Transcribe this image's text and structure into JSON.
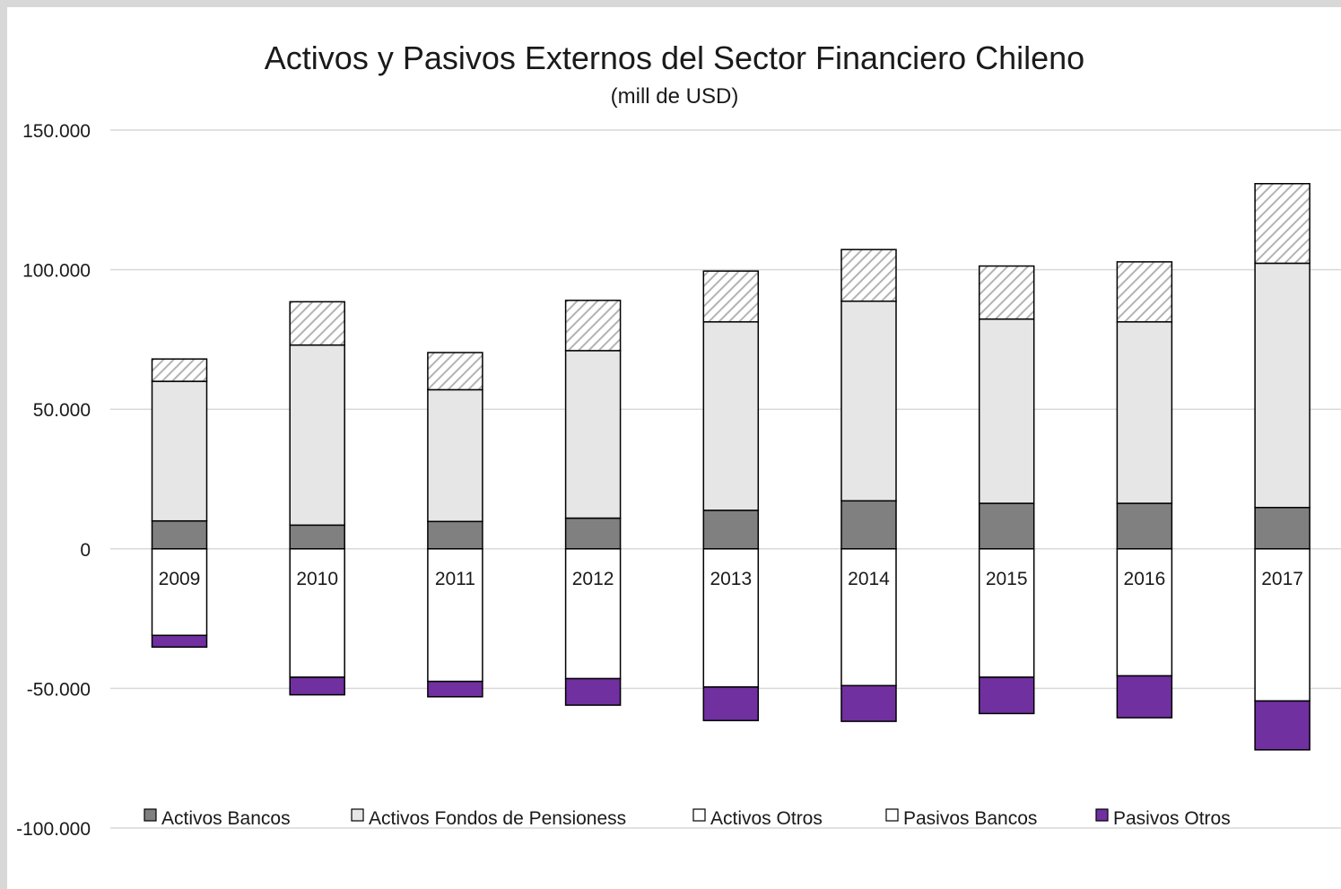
{
  "chart_data": {
    "type": "bar",
    "stacked": true,
    "title": "Activos y Pasivos Externos del Sector Financiero Chileno",
    "subtitle": "(mill de USD)",
    "categories": [
      "2009",
      "2010",
      "2011",
      "2012",
      "2013",
      "2014",
      "2015",
      "2016",
      "2017"
    ],
    "ylim": [
      -100000,
      150000
    ],
    "yticks": [
      150000,
      100000,
      50000,
      0,
      -50000,
      -100000
    ],
    "ytick_labels": [
      "150.000",
      "100.000",
      "50.000",
      "0",
      "-50.000",
      "-100.000"
    ],
    "grid": true,
    "legend_position": "bottom",
    "series": [
      {
        "name": "Activos Bancos",
        "color": "#808080",
        "pattern": "solid",
        "values": [
          10000,
          8500,
          9800,
          11000,
          13800,
          17200,
          16300,
          16300,
          14800
        ]
      },
      {
        "name": "Activos Fondos de Pensioness",
        "color": "#e6e6e6",
        "pattern": "solid",
        "values": [
          50000,
          64500,
          47200,
          60000,
          67500,
          71500,
          66000,
          65000,
          87500
        ]
      },
      {
        "name": "Activos Otros",
        "color": "#ffffff",
        "pattern": "hatch",
        "values": [
          8000,
          15500,
          13300,
          18000,
          18200,
          18500,
          19000,
          21500,
          28500
        ]
      },
      {
        "name": "Pasivos Bancos",
        "color": "#ffffff",
        "pattern": "solid",
        "values": [
          -31000,
          -46000,
          -47500,
          -46500,
          -49500,
          -49000,
          -46000,
          -45500,
          -54500
        ]
      },
      {
        "name": "Pasivos Otros",
        "color": "#7030a0",
        "pattern": "solid",
        "values": [
          -4200,
          -6300,
          -5500,
          -9500,
          -12000,
          -12800,
          -13000,
          -15000,
          -17500
        ]
      }
    ]
  }
}
